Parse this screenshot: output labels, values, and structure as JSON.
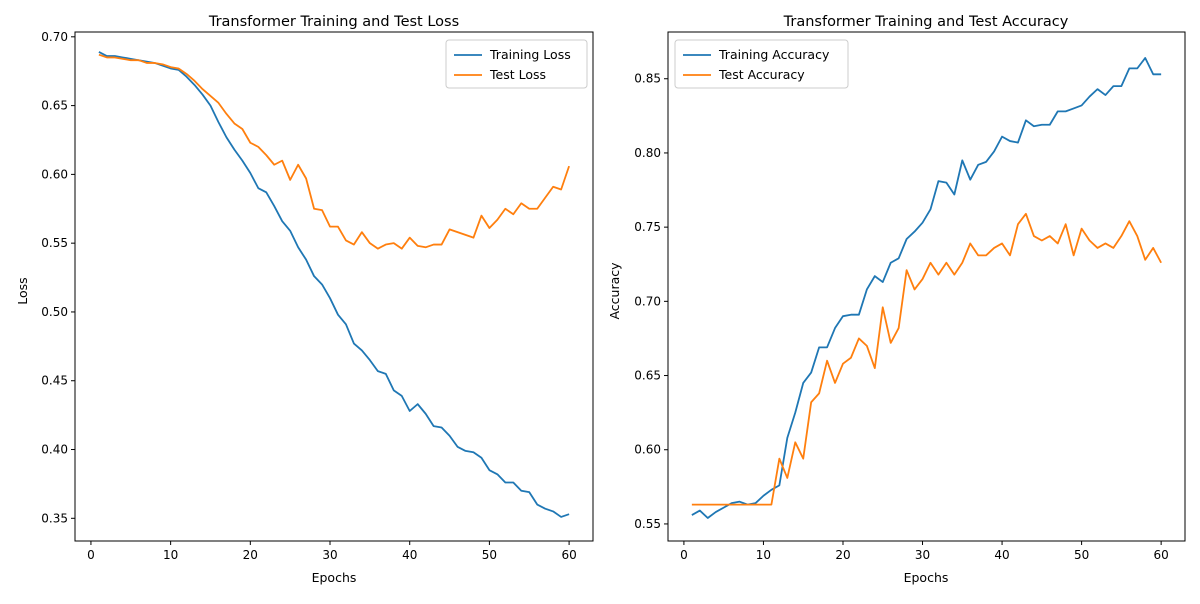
{
  "chart_data": [
    {
      "type": "line",
      "title": "Transformer Training and Test Loss",
      "xlabel": "Epochs",
      "ylabel": "Loss",
      "xlim": [
        -2,
        63
      ],
      "ylim": [
        0.3335,
        0.7035
      ],
      "xticks": [
        0,
        10,
        20,
        30,
        40,
        50,
        60
      ],
      "yticks": [
        0.35,
        0.4,
        0.45,
        0.5,
        0.55,
        0.6,
        0.65,
        0.7
      ],
      "ytick_labels": [
        "0.35",
        "0.40",
        "0.45",
        "0.50",
        "0.55",
        "0.60",
        "0.65",
        "0.70"
      ],
      "grid": false,
      "legend_position": "top-right",
      "x": [
        1,
        2,
        3,
        4,
        5,
        6,
        7,
        8,
        9,
        10,
        11,
        12,
        13,
        14,
        15,
        16,
        17,
        18,
        19,
        20,
        21,
        22,
        23,
        24,
        25,
        26,
        27,
        28,
        29,
        30,
        31,
        32,
        33,
        34,
        35,
        36,
        37,
        38,
        39,
        40,
        41,
        42,
        43,
        44,
        45,
        46,
        47,
        48,
        49,
        50,
        51,
        52,
        53,
        54,
        55,
        56,
        57,
        58,
        59,
        60
      ],
      "series": [
        {
          "name": "Training Loss",
          "color": "#1f77b4",
          "values": [
            0.689,
            0.686,
            0.686,
            0.685,
            0.684,
            0.683,
            0.682,
            0.681,
            0.679,
            0.677,
            0.676,
            0.671,
            0.665,
            0.658,
            0.65,
            0.638,
            0.627,
            0.618,
            0.61,
            0.601,
            0.59,
            0.587,
            0.577,
            0.566,
            0.559,
            0.547,
            0.538,
            0.526,
            0.52,
            0.51,
            0.498,
            0.491,
            0.477,
            0.472,
            0.465,
            0.457,
            0.455,
            0.443,
            0.439,
            0.428,
            0.433,
            0.426,
            0.417,
            0.416,
            0.41,
            0.402,
            0.399,
            0.398,
            0.394,
            0.385,
            0.382,
            0.376,
            0.376,
            0.37,
            0.369,
            0.36,
            0.357,
            0.355,
            0.351,
            0.353
          ]
        },
        {
          "name": "Test Loss",
          "color": "#ff7f0e",
          "values": [
            0.687,
            0.685,
            0.685,
            0.684,
            0.683,
            0.683,
            0.681,
            0.681,
            0.68,
            0.678,
            0.677,
            0.673,
            0.668,
            0.662,
            0.657,
            0.652,
            0.644,
            0.637,
            0.633,
            0.623,
            0.62,
            0.614,
            0.607,
            0.61,
            0.596,
            0.607,
            0.597,
            0.575,
            0.574,
            0.562,
            0.562,
            0.552,
            0.549,
            0.558,
            0.55,
            0.546,
            0.549,
            0.55,
            0.546,
            0.554,
            0.548,
            0.547,
            0.549,
            0.549,
            0.56,
            0.558,
            0.556,
            0.554,
            0.57,
            0.561,
            0.567,
            0.575,
            0.571,
            0.579,
            0.575,
            0.575,
            0.583,
            0.591,
            0.589,
            0.606
          ]
        }
      ]
    },
    {
      "type": "line",
      "title": "Transformer Training and Test Accuracy",
      "xlabel": "Epochs",
      "ylabel": "Accuracy",
      "xlim": [
        -2,
        63
      ],
      "ylim": [
        0.5385,
        0.8815
      ],
      "xticks": [
        0,
        10,
        20,
        30,
        40,
        50,
        60
      ],
      "yticks": [
        0.55,
        0.6,
        0.65,
        0.7,
        0.75,
        0.8,
        0.85
      ],
      "ytick_labels": [
        "0.55",
        "0.60",
        "0.65",
        "0.70",
        "0.75",
        "0.80",
        "0.85"
      ],
      "grid": false,
      "legend_position": "top-left",
      "x": [
        1,
        2,
        3,
        4,
        5,
        6,
        7,
        8,
        9,
        10,
        11,
        12,
        13,
        14,
        15,
        16,
        17,
        18,
        19,
        20,
        21,
        22,
        23,
        24,
        25,
        26,
        27,
        28,
        29,
        30,
        31,
        32,
        33,
        34,
        35,
        36,
        37,
        38,
        39,
        40,
        41,
        42,
        43,
        44,
        45,
        46,
        47,
        48,
        49,
        50,
        51,
        52,
        53,
        54,
        55,
        56,
        57,
        58,
        59,
        60
      ],
      "series": [
        {
          "name": "Training Accuracy",
          "color": "#1f77b4",
          "values": [
            0.556,
            0.559,
            0.554,
            0.558,
            0.561,
            0.564,
            0.565,
            0.563,
            0.564,
            0.569,
            0.573,
            0.576,
            0.608,
            0.625,
            0.645,
            0.652,
            0.669,
            0.669,
            0.682,
            0.69,
            0.691,
            0.691,
            0.708,
            0.717,
            0.713,
            0.726,
            0.729,
            0.742,
            0.747,
            0.753,
            0.762,
            0.781,
            0.78,
            0.772,
            0.795,
            0.782,
            0.792,
            0.794,
            0.801,
            0.811,
            0.808,
            0.807,
            0.822,
            0.818,
            0.819,
            0.819,
            0.828,
            0.828,
            0.83,
            0.832,
            0.838,
            0.843,
            0.839,
            0.845,
            0.845,
            0.857,
            0.857,
            0.864,
            0.853,
            0.853
          ]
        },
        {
          "name": "Test Accuracy",
          "color": "#ff7f0e",
          "values": [
            0.563,
            0.563,
            0.563,
            0.563,
            0.563,
            0.563,
            0.563,
            0.563,
            0.563,
            0.563,
            0.563,
            0.594,
            0.581,
            0.605,
            0.594,
            0.632,
            0.638,
            0.66,
            0.645,
            0.658,
            0.662,
            0.675,
            0.67,
            0.655,
            0.696,
            0.672,
            0.682,
            0.721,
            0.708,
            0.715,
            0.726,
            0.718,
            0.726,
            0.718,
            0.726,
            0.739,
            0.731,
            0.731,
            0.736,
            0.739,
            0.731,
            0.752,
            0.759,
            0.744,
            0.741,
            0.744,
            0.739,
            0.752,
            0.731,
            0.749,
            0.741,
            0.736,
            0.739,
            0.736,
            0.744,
            0.754,
            0.744,
            0.728,
            0.736,
            0.726
          ]
        }
      ]
    }
  ]
}
